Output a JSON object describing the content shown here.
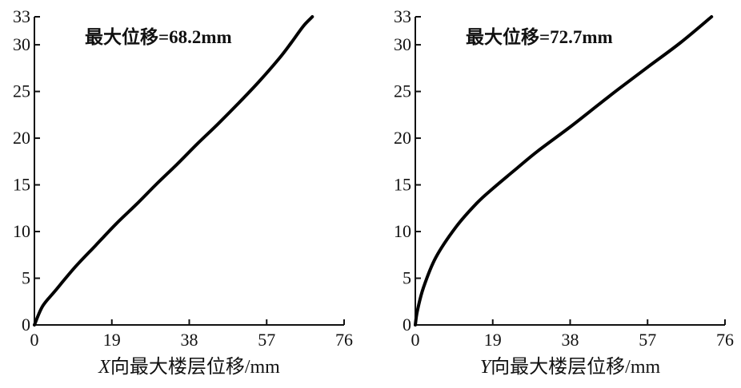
{
  "chart_data": [
    {
      "type": "line",
      "annotation": "最大位移=68.2mm",
      "xlabel_prefix": "X",
      "xlabel_rest": "向最大楼层位移/mm",
      "ylabel": "",
      "xlim": [
        0,
        76
      ],
      "ylim": [
        0,
        33
      ],
      "x_ticks": [
        0,
        19,
        38,
        57,
        76
      ],
      "y_ticks": [
        0,
        5,
        10,
        15,
        20,
        25,
        30,
        33
      ],
      "series": [
        {
          "x": [
            0,
            2,
            5,
            10,
            15,
            20,
            25,
            30,
            35,
            40,
            45,
            50,
            55,
            60,
            63,
            66,
            68.2
          ],
          "y": [
            0,
            2,
            3.6,
            6.2,
            8.5,
            10.8,
            12.9,
            15.1,
            17.2,
            19.4,
            21.5,
            23.7,
            26.0,
            28.5,
            30.2,
            32.0,
            33
          ]
        }
      ]
    },
    {
      "type": "line",
      "annotation": "最大位移=72.7mm",
      "xlabel_prefix": "Y",
      "xlabel_rest": "向最大楼层位移/mm",
      "ylabel": "",
      "xlim": [
        0,
        76
      ],
      "ylim": [
        0,
        33
      ],
      "x_ticks": [
        0,
        19,
        38,
        57,
        76
      ],
      "y_ticks": [
        0,
        5,
        10,
        15,
        20,
        25,
        30,
        33
      ],
      "series": [
        {
          "x": [
            0,
            0.5,
            2,
            5,
            10,
            15,
            19,
            25,
            30,
            38,
            45,
            50,
            57,
            65,
            72.7
          ],
          "y": [
            0,
            1.5,
            4,
            7.2,
            10.5,
            13,
            14.6,
            16.8,
            18.6,
            21.2,
            23.6,
            25.3,
            27.6,
            30.2,
            33
          ]
        }
      ]
    }
  ]
}
